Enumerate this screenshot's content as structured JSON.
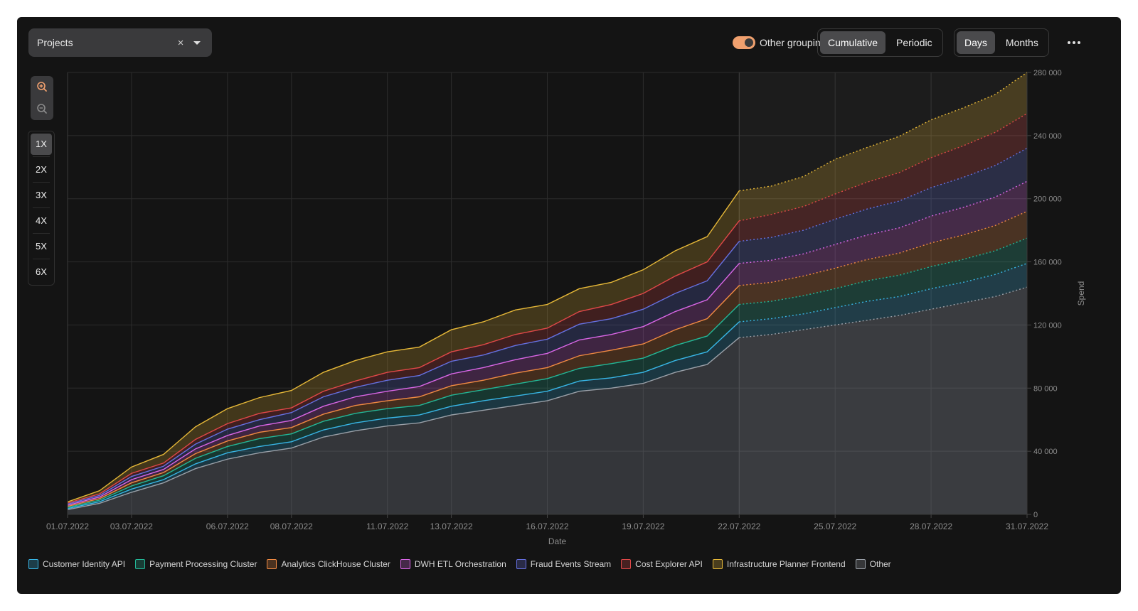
{
  "toolbar": {
    "selector_label": "Projects",
    "clear_symbol": "×",
    "toggle_label": "Other grouping",
    "toggle_on": true,
    "mode_options": [
      "Cumulative",
      "Periodic"
    ],
    "mode_active": 0,
    "period_options": [
      "Days",
      "Months"
    ],
    "period_active": 0,
    "accent_color": "#f0a06e"
  },
  "zoom": {
    "multipliers": [
      "1X",
      "2X",
      "3X",
      "4X",
      "5X",
      "6X"
    ],
    "active": 0
  },
  "chart_data": {
    "type": "area",
    "stacked": true,
    "xlabel": "Date",
    "ylabel": "Spend",
    "ylim": [
      0,
      280000
    ],
    "y_ticks": [
      0,
      40000,
      80000,
      120000,
      160000,
      200000,
      240000,
      280000
    ],
    "y_tick_labels": [
      "0",
      "40 000",
      "80 000",
      "120 000",
      "160 000",
      "200 000",
      "240 000",
      "280 000"
    ],
    "x_tick_labels": [
      "01.07.2022",
      "03.07.2022",
      "06.07.2022",
      "08.07.2022",
      "11.07.2022",
      "13.07.2022",
      "16.07.2022",
      "19.07.2022",
      "22.07.2022",
      "25.07.2022",
      "28.07.2022",
      "31.07.2022"
    ],
    "x_dates": [
      "01.07.2022",
      "02.07.2022",
      "03.07.2022",
      "04.07.2022",
      "05.07.2022",
      "06.07.2022",
      "07.07.2022",
      "08.07.2022",
      "09.07.2022",
      "10.07.2022",
      "11.07.2022",
      "12.07.2022",
      "13.07.2022",
      "14.07.2022",
      "15.07.2022",
      "16.07.2022",
      "17.07.2022",
      "18.07.2022",
      "19.07.2022",
      "20.07.2022",
      "21.07.2022",
      "22.07.2022",
      "23.07.2022",
      "24.07.2022",
      "25.07.2022",
      "26.07.2022",
      "27.07.2022",
      "28.07.2022",
      "29.07.2022",
      "30.07.2022",
      "31.07.2022"
    ],
    "forecast_from": "22.07.2022",
    "grid": true,
    "legend_position": "bottom-left",
    "series": [
      {
        "name": "Other",
        "color": "#9aa0a8",
        "values": [
          3000,
          7000,
          14000,
          20000,
          29000,
          35000,
          39000,
          42000,
          49000,
          53000,
          56000,
          58000,
          63000,
          66000,
          69000,
          72000,
          78000,
          80000,
          83000,
          90000,
          95000,
          112000,
          114000,
          117000,
          120000,
          123000,
          126000,
          130000,
          134000,
          138000,
          144000
        ]
      },
      {
        "name": "Customer Identity API",
        "color": "#38b6e6",
        "values": [
          700,
          1000,
          2000,
          2000,
          3000,
          4000,
          4000,
          4000,
          4500,
          5000,
          5000,
          5000,
          5500,
          6000,
          6000,
          6000,
          6500,
          6500,
          7000,
          7500,
          8000,
          10000,
          10000,
          10000,
          11000,
          12000,
          12000,
          13000,
          13000,
          14000,
          15000
        ]
      },
      {
        "name": "Payment Processing Cluster",
        "color": "#23b797",
        "values": [
          700,
          1000,
          2000,
          2500,
          3500,
          4000,
          5000,
          5000,
          5500,
          6000,
          6000,
          6000,
          7000,
          7000,
          7500,
          8000,
          8000,
          9000,
          9000,
          9500,
          10000,
          11000,
          11000,
          11500,
          12000,
          13000,
          13500,
          14000,
          14500,
          15000,
          16000
        ]
      },
      {
        "name": "Analytics ClickHouse Cluster",
        "color": "#f08a42",
        "values": [
          700,
          1000,
          2000,
          2000,
          3000,
          3500,
          4000,
          4000,
          4500,
          5000,
          5000,
          5500,
          6000,
          6000,
          7000,
          7000,
          8000,
          8500,
          9000,
          10000,
          11000,
          12000,
          12000,
          12500,
          13000,
          13500,
          14000,
          15000,
          15500,
          16000,
          17000
        ]
      },
      {
        "name": "DWH ETL Orchestration",
        "color": "#d966e6",
        "values": [
          700,
          1000,
          2000,
          2000,
          3000,
          3500,
          4000,
          4500,
          5000,
          5500,
          6000,
          6500,
          7500,
          8000,
          8500,
          9000,
          10000,
          10000,
          11000,
          11500,
          12000,
          14000,
          14000,
          14000,
          15000,
          15500,
          16000,
          17000,
          17500,
          18000,
          19000
        ]
      },
      {
        "name": "Fraud Events Stream",
        "color": "#6670e0",
        "values": [
          700,
          1000,
          2000,
          2000,
          3000,
          4000,
          4000,
          5000,
          6000,
          6000,
          7000,
          7000,
          8000,
          8000,
          9000,
          9000,
          10000,
          10000,
          11000,
          11500,
          12000,
          14000,
          14500,
          15000,
          16000,
          16500,
          17000,
          18000,
          19000,
          20000,
          21000
        ]
      },
      {
        "name": "Cost Explorer API",
        "color": "#e04848",
        "values": [
          700,
          1000,
          2000,
          2000,
          3000,
          3500,
          4000,
          3000,
          3500,
          4000,
          5000,
          5000,
          6000,
          6500,
          7000,
          7000,
          8000,
          9000,
          10000,
          11000,
          12000,
          13000,
          14500,
          15000,
          16000,
          17000,
          18000,
          19000,
          20000,
          21000,
          22000
        ]
      },
      {
        "name": "Infrastructure Planner Frontend",
        "color": "#e6b838",
        "values": [
          700,
          2000,
          4000,
          5500,
          8000,
          9500,
          10000,
          11000,
          12000,
          13000,
          13000,
          13000,
          14000,
          14500,
          15500,
          15000,
          14500,
          14000,
          15000,
          16000,
          16000,
          19000,
          18000,
          19000,
          22000,
          22000,
          23000,
          24000,
          24000,
          24000,
          26000
        ]
      }
    ]
  },
  "legend_items": [
    {
      "label": "Customer Identity API",
      "color": "#38b6e6"
    },
    {
      "label": "Payment Processing Cluster",
      "color": "#23b797"
    },
    {
      "label": "Analytics ClickHouse Cluster",
      "color": "#f08a42"
    },
    {
      "label": "DWH ETL Orchestration",
      "color": "#d966e6"
    },
    {
      "label": "Fraud Events Stream",
      "color": "#6670e0"
    },
    {
      "label": "Cost Explorer API",
      "color": "#e04848"
    },
    {
      "label": "Infrastructure Planner Frontend",
      "color": "#e6b838"
    },
    {
      "label": "Other",
      "color": "#9aa0a8"
    }
  ]
}
